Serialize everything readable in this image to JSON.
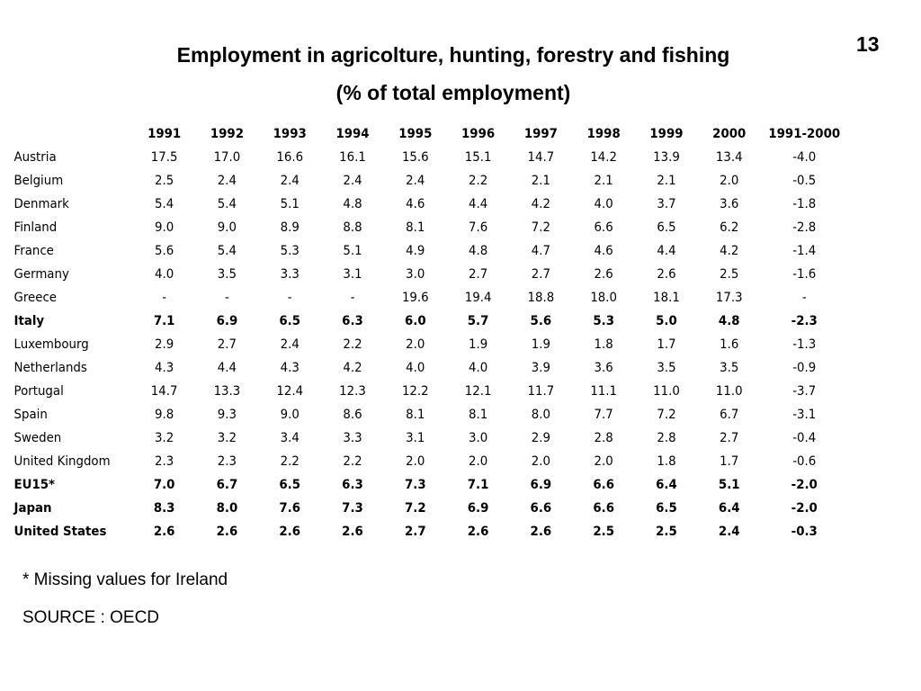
{
  "page_number": "13",
  "title": "Employment in agricolture, hunting, forestry and fishing",
  "subtitle": "(% of total employment)",
  "table": {
    "headers": [
      "1991",
      "1992",
      "1993",
      "1994",
      "1995",
      "1996",
      "1997",
      "1998",
      "1999",
      "2000",
      "1991-2000"
    ],
    "rows": [
      {
        "country": "Austria",
        "bold": false,
        "values": [
          "17.5",
          "17.0",
          "16.6",
          "16.1",
          "15.6",
          "15.1",
          "14.7",
          "14.2",
          "13.9",
          "13.4",
          "-4.0"
        ]
      },
      {
        "country": "Belgium",
        "bold": false,
        "values": [
          "2.5",
          "2.4",
          "2.4",
          "2.4",
          "2.4",
          "2.2",
          "2.1",
          "2.1",
          "2.1",
          "2.0",
          "-0.5"
        ]
      },
      {
        "country": "Denmark",
        "bold": false,
        "values": [
          "5.4",
          "5.4",
          "5.1",
          "4.8",
          "4.6",
          "4.4",
          "4.2",
          "4.0",
          "3.7",
          "3.6",
          "-1.8"
        ]
      },
      {
        "country": "Finland",
        "bold": false,
        "values": [
          "9.0",
          "9.0",
          "8.9",
          "8.8",
          "8.1",
          "7.6",
          "7.2",
          "6.6",
          "6.5",
          "6.2",
          "-2.8"
        ]
      },
      {
        "country": "France",
        "bold": false,
        "values": [
          "5.6",
          "5.4",
          "5.3",
          "5.1",
          "4.9",
          "4.8",
          "4.7",
          "4.6",
          "4.4",
          "4.2",
          "-1.4"
        ]
      },
      {
        "country": "Germany",
        "bold": false,
        "values": [
          "4.0",
          "3.5",
          "3.3",
          "3.1",
          "3.0",
          "2.7",
          "2.7",
          "2.6",
          "2.6",
          "2.5",
          "-1.6"
        ]
      },
      {
        "country": "Greece",
        "bold": false,
        "values": [
          "-",
          "-",
          "-",
          "-",
          "19.6",
          "19.4",
          "18.8",
          "18.0",
          "18.1",
          "17.3",
          "-"
        ]
      },
      {
        "country": "Italy",
        "bold": true,
        "values": [
          "7.1",
          "6.9",
          "6.5",
          "6.3",
          "6.0",
          "5.7",
          "5.6",
          "5.3",
          "5.0",
          "4.8",
          "-2.3"
        ]
      },
      {
        "country": "Luxembourg",
        "bold": false,
        "values": [
          "2.9",
          "2.7",
          "2.4",
          "2.2",
          "2.0",
          "1.9",
          "1.9",
          "1.8",
          "1.7",
          "1.6",
          "-1.3"
        ]
      },
      {
        "country": "Netherlands",
        "bold": false,
        "values": [
          "4.3",
          "4.4",
          "4.3",
          "4.2",
          "4.0",
          "4.0",
          "3.9",
          "3.6",
          "3.5",
          "3.5",
          "-0.9"
        ]
      },
      {
        "country": "Portugal",
        "bold": false,
        "values": [
          "14.7",
          "13.3",
          "12.4",
          "12.3",
          "12.2",
          "12.1",
          "11.7",
          "11.1",
          "11.0",
          "11.0",
          "-3.7"
        ]
      },
      {
        "country": "Spain",
        "bold": false,
        "values": [
          "9.8",
          "9.3",
          "9.0",
          "8.6",
          "8.1",
          "8.1",
          "8.0",
          "7.7",
          "7.2",
          "6.7",
          "-3.1"
        ]
      },
      {
        "country": "Sweden",
        "bold": false,
        "values": [
          "3.2",
          "3.2",
          "3.4",
          "3.3",
          "3.1",
          "3.0",
          "2.9",
          "2.8",
          "2.8",
          "2.7",
          "-0.4"
        ]
      },
      {
        "country": "United Kingdom",
        "bold": false,
        "values": [
          "2.3",
          "2.3",
          "2.2",
          "2.2",
          "2.0",
          "2.0",
          "2.0",
          "2.0",
          "1.8",
          "1.7",
          "-0.6"
        ]
      },
      {
        "country": "EU15*",
        "bold": true,
        "values": [
          "7.0",
          "6.7",
          "6.5",
          "6.3",
          "7.3",
          "7.1",
          "6.9",
          "6.6",
          "6.4",
          "5.1",
          "-2.0"
        ]
      },
      {
        "country": "Japan",
        "bold": true,
        "values": [
          "8.3",
          "8.0",
          "7.6",
          "7.3",
          "7.2",
          "6.9",
          "6.6",
          "6.6",
          "6.5",
          "6.4",
          "-2.0"
        ]
      },
      {
        "country": "United States",
        "bold": true,
        "values": [
          "2.6",
          "2.6",
          "2.6",
          "2.6",
          "2.7",
          "2.6",
          "2.6",
          "2.5",
          "2.5",
          "2.4",
          "-0.3"
        ]
      }
    ]
  },
  "note": "* Missing values for Ireland",
  "source": "SOURCE : OECD"
}
